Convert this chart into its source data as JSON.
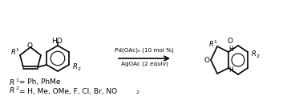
{
  "background_color": "#ffffff",
  "arrow_color": "#000000",
  "text_color": "#000000",
  "reagent_line1": "Pd(OAc)₂ (10 mol %)",
  "reagent_line2": "AgOAc (2 equiv)",
  "r1_label": "R¹ = Ph, PhMe",
  "r2_label": "R² = H, Me, OMe, F, Cl, Br, NO₂",
  "figsize": [
    3.78,
    1.25
  ],
  "dpi": 100
}
